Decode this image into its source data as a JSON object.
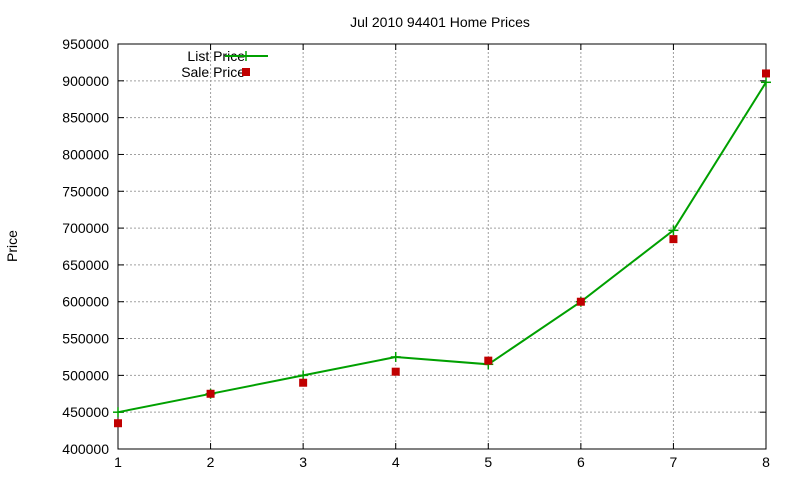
{
  "chart_data": {
    "type": "line",
    "title": "Jul 2010 94401 Home Prices",
    "xlabel": "",
    "ylabel": "Price",
    "x": [
      1,
      2,
      3,
      4,
      5,
      6,
      7,
      8
    ],
    "xlim": [
      1,
      8
    ],
    "ylim": [
      400000,
      950000
    ],
    "xticks": [
      "1",
      "2",
      "3",
      "4",
      "5",
      "6",
      "7",
      "8"
    ],
    "yticks": [
      "400000",
      "450000",
      "500000",
      "550000",
      "600000",
      "650000",
      "700000",
      "750000",
      "800000",
      "850000",
      "900000",
      "950000"
    ],
    "grid": true,
    "legend_position": "top-left",
    "series": [
      {
        "name": "List Price",
        "style": "line-with-plus-markers",
        "color": "#00a000",
        "values": [
          450000,
          475000,
          500000,
          525000,
          515000,
          600000,
          697000,
          898000
        ]
      },
      {
        "name": "Sale Price",
        "style": "square-points",
        "color": "#c00000",
        "values": [
          435000,
          475000,
          490000,
          505000,
          520000,
          600000,
          685000,
          910000
        ]
      }
    ]
  }
}
